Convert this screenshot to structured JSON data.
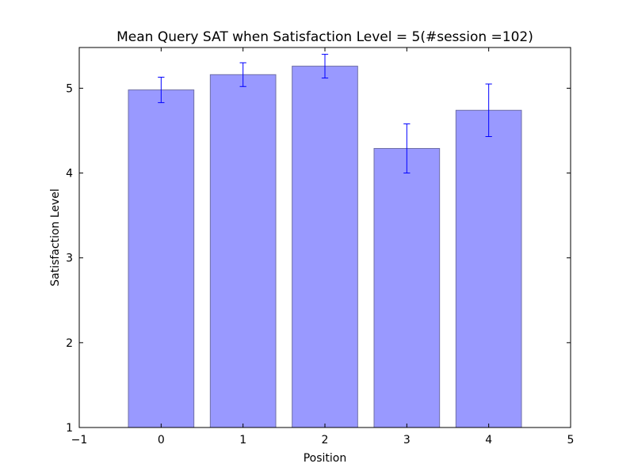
{
  "chart_data": {
    "type": "bar",
    "title": "Mean Query SAT when Satisfaction Level = 5(#session =102)",
    "xlabel": "Position",
    "ylabel": "Satisfaction Level",
    "categories": [
      0,
      1,
      2,
      3,
      4
    ],
    "values": [
      4.98,
      5.16,
      5.26,
      4.29,
      4.74
    ],
    "errors": [
      0.15,
      0.14,
      0.14,
      0.29,
      0.31
    ],
    "xlim": [
      -1,
      5
    ],
    "ylim": [
      1,
      5.48
    ],
    "xticks": [
      "−1",
      "0",
      "1",
      "2",
      "3",
      "4",
      "5"
    ],
    "yticks": [
      "1",
      "2",
      "3",
      "4",
      "5"
    ],
    "grid": false,
    "legend": "none",
    "colors": {
      "bar_fill": "#9999ff",
      "bar_edge": "#6f6fa6",
      "error_bar": "#0000ff",
      "axis": "#000000"
    }
  }
}
